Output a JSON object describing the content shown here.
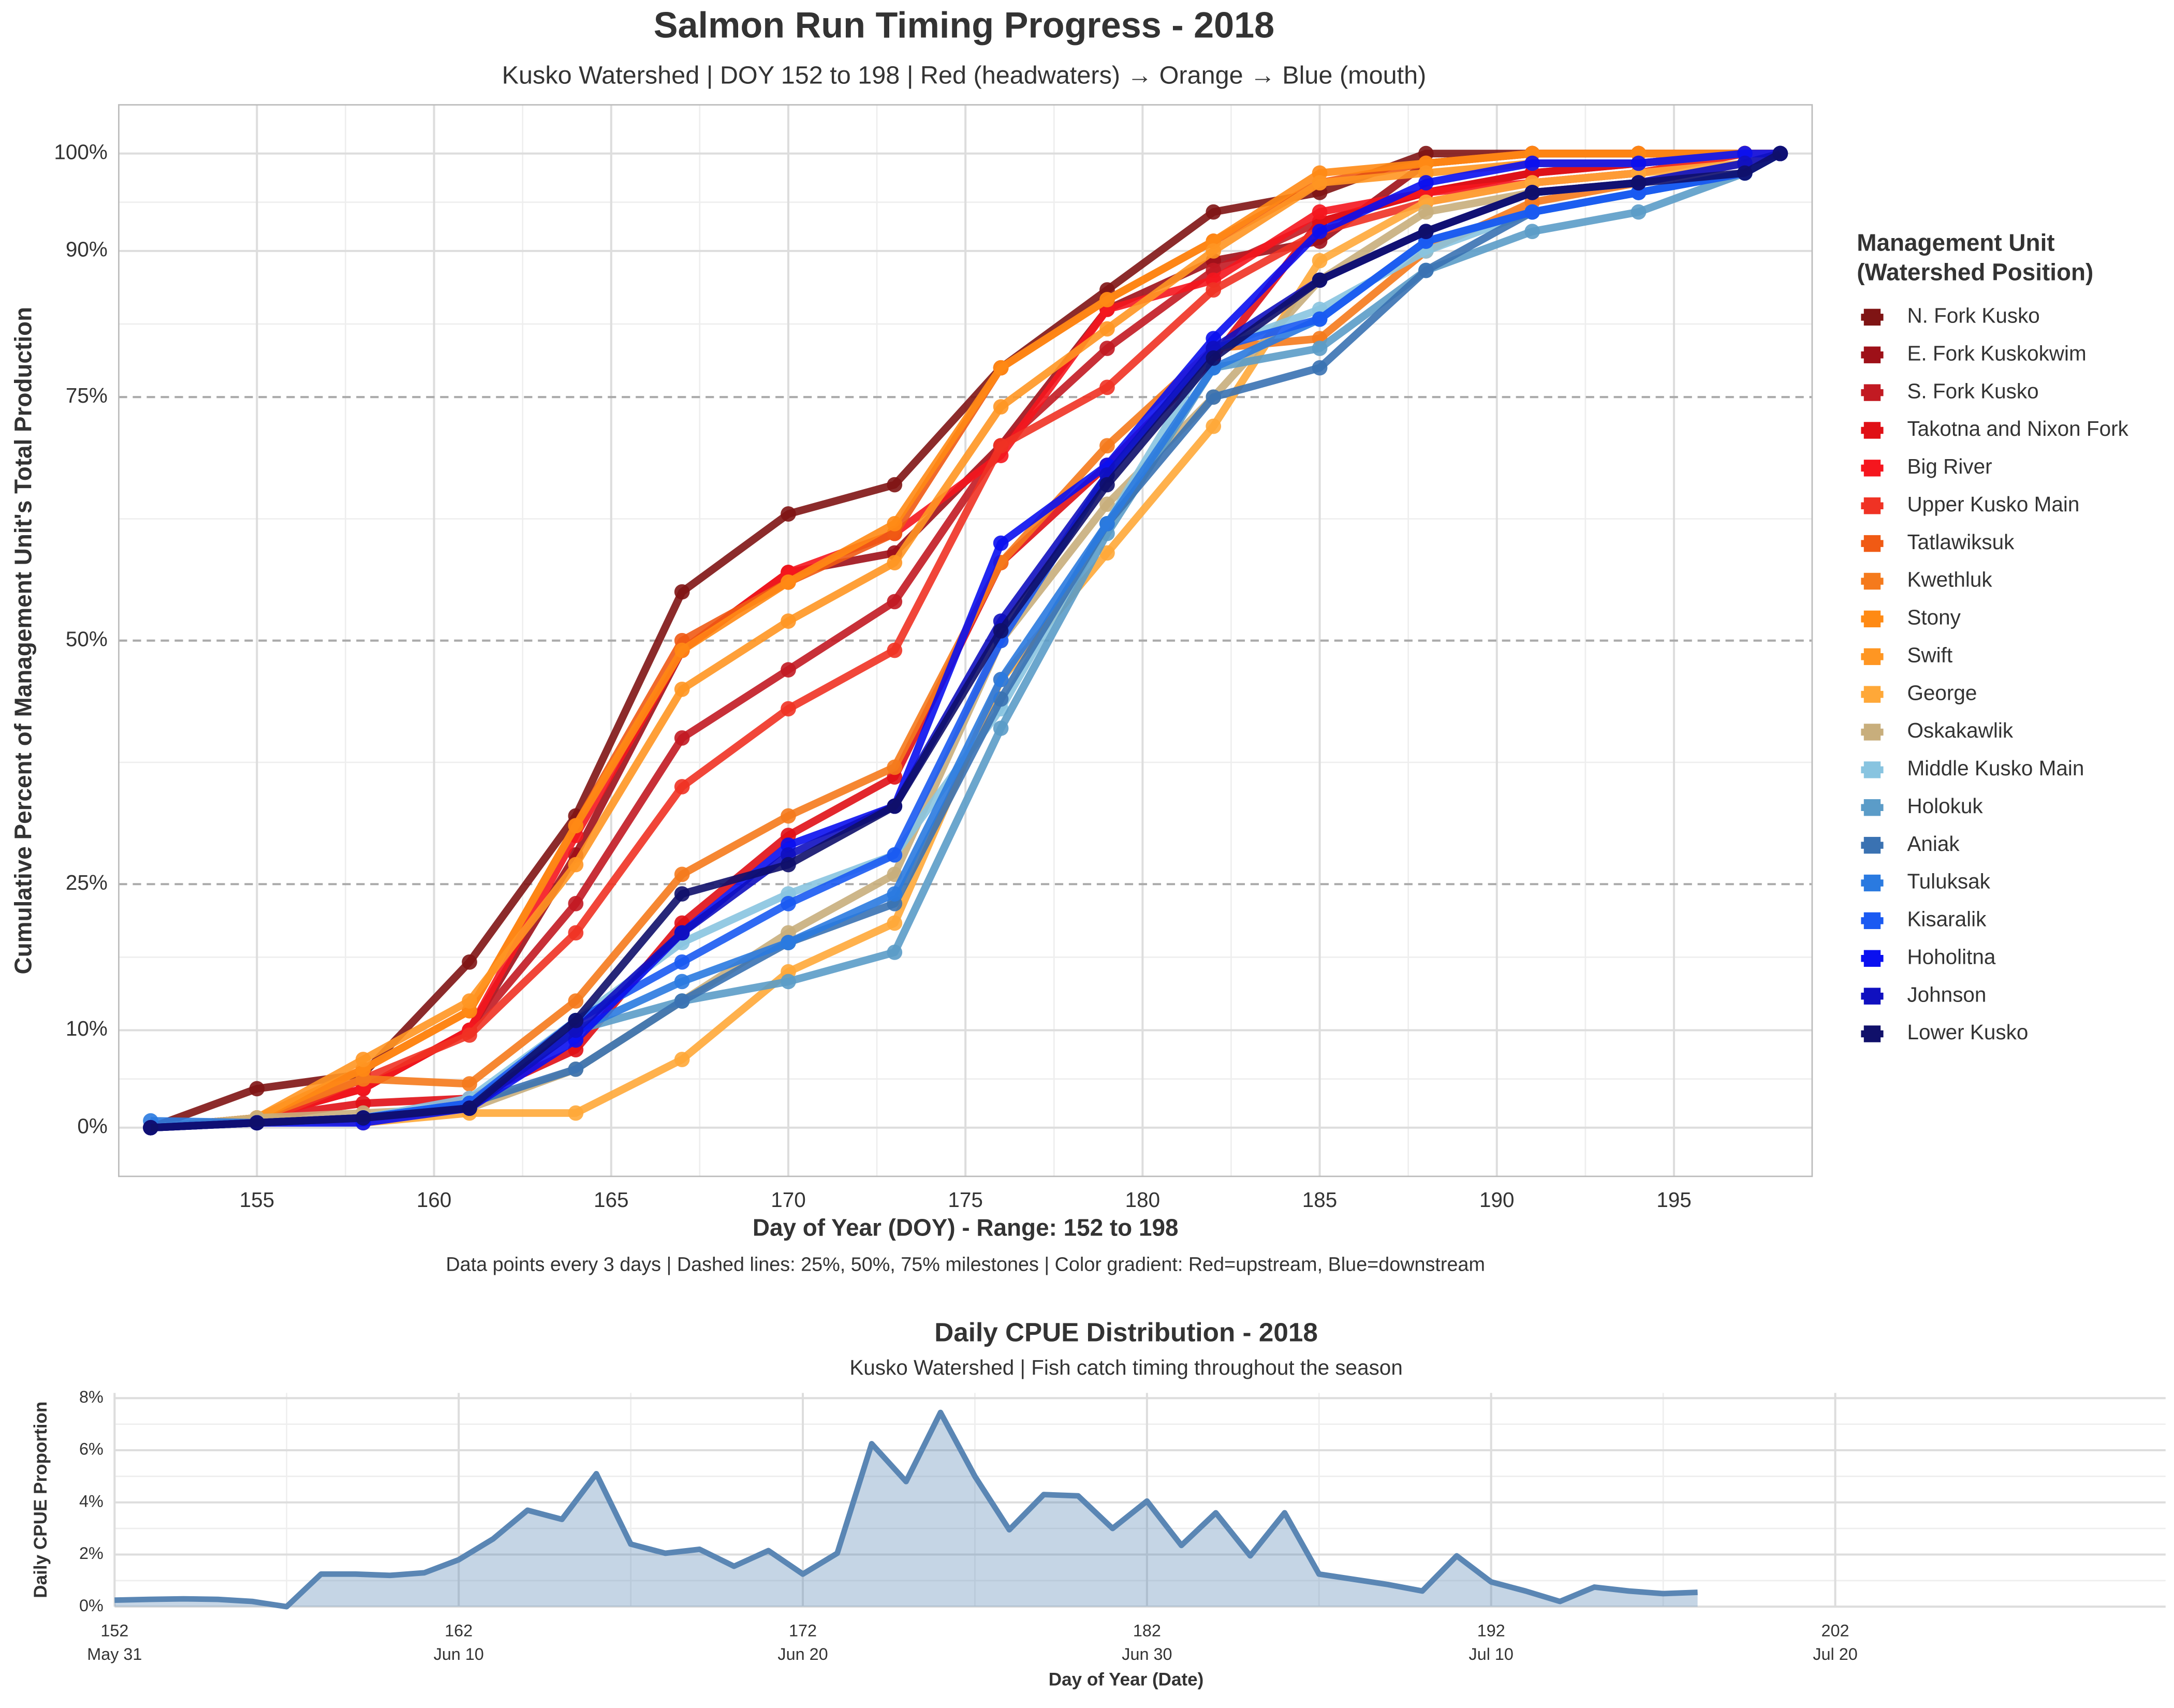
{
  "chart_data": [
    {
      "type": "line",
      "title": "Salmon Run Timing Progress - 2018",
      "subtitle": "Kusko Watershed | DOY 152 to 198 | Red (headwaters) → Orange → Blue (mouth)",
      "xlabel": "Day of Year (DOY) - Range: 152 to 198",
      "ylabel": "Cumulative Percent of Management Unit's Total Production",
      "caption": "Data points every 3 days | Dashed lines: 25%, 50%, 75% milestones | Color gradient: Red=upstream, Blue=downstream",
      "legend_title": [
        "Management Unit",
        "(Watershed Position)"
      ],
      "legend": "right",
      "grid": true,
      "dashed_ticks": [
        25,
        50,
        75
      ],
      "xlim": [
        151.1,
        198.9
      ],
      "ylim": [
        -5,
        105
      ],
      "xticks": [
        155,
        160,
        165,
        170,
        175,
        180,
        185,
        190,
        195
      ],
      "yticks": [
        {
          "value": 0,
          "label": "0%"
        },
        {
          "value": 10,
          "label": "10%"
        },
        {
          "value": 25,
          "label": "25%"
        },
        {
          "value": 50,
          "label": "50%"
        },
        {
          "value": 75,
          "label": "75%"
        },
        {
          "value": 90,
          "label": "90%"
        },
        {
          "value": 100,
          "label": "100%"
        }
      ],
      "x": [
        152,
        155,
        158,
        161,
        164,
        167,
        170,
        173,
        176,
        179,
        182,
        185,
        188,
        191,
        194,
        197,
        198
      ],
      "series": [
        {
          "name": "N. Fork Kusko",
          "color": "#7f1414",
          "values": [
            0,
            4,
            5.5,
            17,
            32,
            55,
            63,
            66,
            78,
            86,
            94,
            96,
            100,
            100,
            100,
            100,
            100
          ]
        },
        {
          "name": "E. Fork Kuskokwim",
          "color": "#9e1018",
          "values": [
            0,
            1,
            4,
            10,
            28,
            49,
            57,
            59,
            70,
            84,
            89,
            91,
            99,
            100,
            100,
            100,
            100
          ]
        },
        {
          "name": "S. Fork Kusko",
          "color": "#c21a22",
          "values": [
            0,
            1,
            4,
            10,
            23,
            40,
            47,
            54,
            70,
            80,
            88,
            93,
            96,
            98,
            99,
            100,
            100
          ]
        },
        {
          "name": "Takotna and Nixon Fork",
          "color": "#e01016",
          "values": [
            0,
            1,
            2.5,
            3,
            8,
            21,
            30,
            36,
            58,
            68,
            79,
            93,
            96,
            98,
            99,
            100,
            100
          ]
        },
        {
          "name": "Big River",
          "color": "#f5161e",
          "values": [
            0,
            1,
            4,
            10,
            30,
            49,
            57,
            61,
            69,
            84,
            87,
            94,
            96,
            97,
            98,
            100,
            100
          ]
        },
        {
          "name": "Upper Kusko Main",
          "color": "#f03224",
          "values": [
            0,
            0.5,
            5,
            9.5,
            20,
            35,
            43,
            49,
            70,
            76,
            86,
            92,
            95,
            97,
            98,
            100,
            100
          ]
        },
        {
          "name": "Tatlawiksuk",
          "color": "#f05a14",
          "values": [
            0,
            1,
            6,
            12,
            31,
            50,
            56,
            61,
            78,
            85,
            91,
            97,
            99,
            100,
            100,
            100,
            100
          ]
        },
        {
          "name": "Kwethluk",
          "color": "#f57a1c",
          "values": [
            0,
            1,
            5,
            4.5,
            13,
            26,
            32,
            37,
            58,
            70,
            80,
            81,
            90,
            95,
            97,
            99,
            100
          ]
        },
        {
          "name": "Stony",
          "color": "#ff8a14",
          "values": [
            0,
            1,
            6,
            12,
            31,
            49,
            56,
            62,
            78,
            85,
            91,
            98,
            99,
            100,
            100,
            100,
            100
          ]
        },
        {
          "name": "Swift",
          "color": "#ff9622",
          "values": [
            0,
            1,
            7,
            13,
            27,
            45,
            52,
            58,
            74,
            82,
            90,
            97,
            98,
            99,
            99,
            100,
            100
          ]
        },
        {
          "name": "George",
          "color": "#ffa838",
          "values": [
            0,
            1,
            0.5,
            1.5,
            1.5,
            7,
            16,
            21,
            46,
            59,
            72,
            89,
            95,
            97,
            98,
            99,
            100
          ]
        },
        {
          "name": "Oskakawlik",
          "color": "#c8ae7c",
          "values": [
            0,
            1,
            1.5,
            2,
            6,
            13,
            20,
            26,
            50,
            64,
            75,
            87,
            94,
            96,
            97,
            99,
            100
          ]
        },
        {
          "name": "Middle Kusko Main",
          "color": "#88c4e0",
          "values": [
            0,
            0.5,
            1,
            3,
            11,
            19,
            24,
            28,
            43,
            62,
            80,
            84,
            90,
            94,
            96,
            98,
            100
          ]
        },
        {
          "name": "Holokuk",
          "color": "#5b9cc8",
          "values": [
            0,
            0.5,
            1,
            2.5,
            10,
            13,
            15,
            18,
            41,
            61,
            78,
            80,
            88,
            92,
            94,
            98,
            100
          ]
        },
        {
          "name": "Aniak",
          "color": "#3a72b2",
          "values": [
            0,
            0.5,
            1,
            2.5,
            6,
            13,
            19,
            23,
            44,
            62,
            75,
            78,
            88,
            94,
            96,
            98,
            100
          ]
        },
        {
          "name": "Tuluksak",
          "color": "#2a7ae0",
          "values": [
            0.7,
            0.5,
            1,
            2.5,
            10,
            15,
            19,
            24,
            46,
            62,
            78,
            83,
            91,
            94,
            96,
            98,
            100
          ]
        },
        {
          "name": "Kisaralik",
          "color": "#1a5af2",
          "values": [
            0,
            0.5,
            1,
            2.5,
            11,
            17,
            23,
            28,
            50,
            67,
            80,
            83,
            91,
            94,
            96,
            98,
            100
          ]
        },
        {
          "name": "Hoholitna",
          "color": "#0a10f0",
          "values": [
            0,
            0.5,
            0.5,
            2,
            9,
            20,
            29,
            33,
            60,
            68,
            81,
            92,
            97,
            99,
            99,
            100,
            100
          ]
        },
        {
          "name": "Johnson",
          "color": "#1010c0",
          "values": [
            0,
            0.5,
            1,
            2,
            10,
            20,
            28,
            33,
            52,
            67,
            80,
            87,
            92,
            96,
            97,
            99,
            100
          ]
        },
        {
          "name": "Lower Kusko",
          "color": "#10106a",
          "values": [
            0,
            0.5,
            1,
            2,
            11,
            24,
            27,
            33,
            51,
            66,
            79,
            87,
            92,
            96,
            97,
            98,
            100
          ]
        }
      ]
    },
    {
      "type": "area",
      "title": "Daily CPUE Distribution - 2018",
      "subtitle": "Kusko Watershed | Fish catch timing throughout the season",
      "xlabel": "Day of Year (Date)",
      "ylabel": "Daily CPUE Proportion",
      "grid": true,
      "color": "#5a86b4",
      "xlim": [
        152,
        211.6
      ],
      "ylim": [
        0,
        8.2
      ],
      "xticks": [
        152,
        162,
        172,
        182,
        192,
        202
      ],
      "xtick_dates": [
        "May 31",
        "Jun 10",
        "Jun 20",
        "Jun 30",
        "Jul 10",
        "Jul 20"
      ],
      "yticks": [
        {
          "value": 0,
          "label": "0%"
        },
        {
          "value": 2,
          "label": "2%"
        },
        {
          "value": 4,
          "label": "4%"
        },
        {
          "value": 6,
          "label": "6%"
        },
        {
          "value": 8,
          "label": "8%"
        }
      ],
      "x": [
        152,
        153,
        154,
        155,
        156,
        157,
        158,
        159,
        160,
        161,
        162,
        163,
        164,
        165,
        166,
        167,
        168,
        169,
        170,
        171,
        172,
        173,
        174,
        175,
        176,
        177,
        178,
        179,
        180,
        181,
        182,
        183,
        184,
        185,
        186,
        187,
        188,
        189,
        190,
        191,
        192,
        193,
        194,
        195,
        196,
        197,
        198
      ],
      "values": [
        0.25,
        0.28,
        0.3,
        0.28,
        0.2,
        0.0,
        1.25,
        1.25,
        1.2,
        1.3,
        1.8,
        2.6,
        3.7,
        3.35,
        5.1,
        2.4,
        2.05,
        2.2,
        1.55,
        2.15,
        1.25,
        2.05,
        6.25,
        4.8,
        7.45,
        5.0,
        2.95,
        4.3,
        4.25,
        3.0,
        4.05,
        2.35,
        3.6,
        1.95,
        3.6,
        1.25,
        1.05,
        0.85,
        0.6,
        1.95,
        0.95,
        0.6,
        0.2,
        0.75,
        0.6,
        0.5,
        0.55
      ]
    }
  ]
}
